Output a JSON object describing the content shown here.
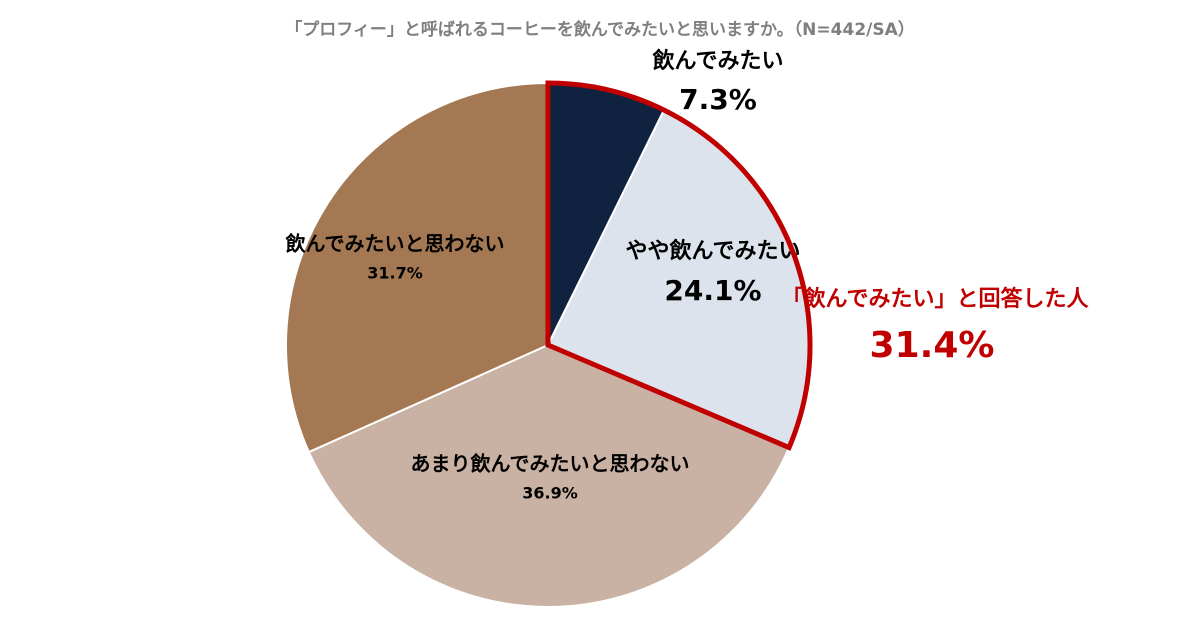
{
  "chart_data": {
    "type": "pie",
    "title": "「プロフィー」と呼ばれるコーヒーを飲んでみたいと思いますか。（N=442/SA）",
    "categories": [
      "飲んでみたい",
      "やや飲んでみたい",
      "あまり飲んでみたいと思わない",
      "飲んでみたいと思わない"
    ],
    "values": [
      7.3,
      24.1,
      36.9,
      31.7
    ],
    "value_labels": [
      "7.3%",
      "24.1%",
      "36.9%",
      "31.7%"
    ],
    "colors": [
      "#0f2341",
      "#dce3ec",
      "#c9b1a3",
      "#a47852"
    ],
    "annotation": {
      "text": "「飲んでみたい」と回答した人",
      "value": 31.4,
      "value_label": "31.4%",
      "color": "#c00000"
    }
  }
}
